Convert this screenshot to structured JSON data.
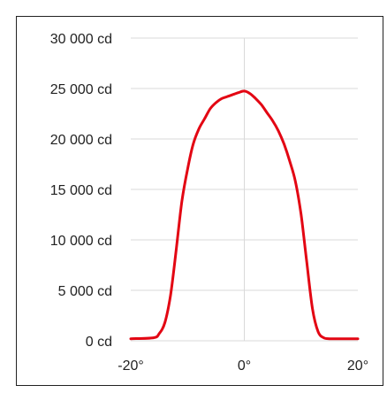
{
  "chart_data": {
    "type": "line",
    "title": "",
    "xlabel": "",
    "ylabel": "",
    "xlim": [
      -20,
      20
    ],
    "ylim": [
      0,
      30000
    ],
    "grid": true,
    "legend": "none",
    "x_ticks": [
      -20,
      0,
      20
    ],
    "x_tick_labels": [
      "-20°",
      "0°",
      "20°"
    ],
    "y_ticks": [
      0,
      5000,
      10000,
      15000,
      20000,
      25000,
      30000
    ],
    "y_tick_labels": [
      "0 cd",
      "5 000 cd",
      "10 000 cd",
      "15 000 cd",
      "20 000 cd",
      "25 000 cd",
      "30 000 cd"
    ],
    "series": [
      {
        "color": "#e30613",
        "x": [
          -20,
          -16,
          -15,
          -14,
          -13,
          -12,
          -11,
          -10,
          -9,
          -8,
          -7,
          -6,
          -5,
          -4,
          -3,
          -2,
          -1,
          0,
          1,
          2,
          3,
          4,
          5,
          6,
          7,
          8,
          9,
          10,
          11,
          12,
          13,
          14,
          15,
          16,
          20
        ],
        "y": [
          200,
          300,
          700,
          1800,
          4500,
          9000,
          13800,
          17000,
          19500,
          21000,
          22000,
          23000,
          23600,
          24000,
          24200,
          24400,
          24600,
          24750,
          24500,
          24000,
          23400,
          22600,
          21800,
          20800,
          19500,
          17800,
          15800,
          12500,
          7800,
          3200,
          900,
          300,
          200,
          200,
          200
        ]
      }
    ]
  }
}
